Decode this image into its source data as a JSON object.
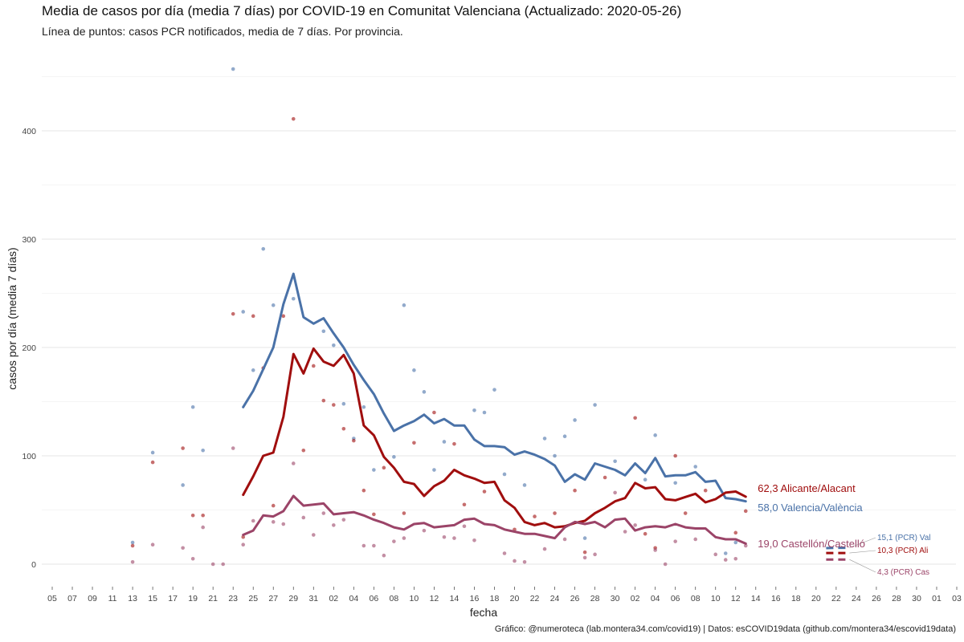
{
  "title": "Media de casos por día (media 7 días) por COVID-19 en Comunitat Valenciana (Actualizado: 2020-05-26)",
  "subtitle": "Línea de puntos: casos PCR notificados, media de 7 días. Por provincia.",
  "caption": "Gráfico: @numeroteca (lab.montera34.com/covid19) | Datos: esCOVID19data (github.com/montera34/escovid19data)",
  "colors": {
    "Valencia": "#4a72a8",
    "Alicante": "#a00e0e",
    "Castellon": "#9b4468",
    "grid": "#ebebeb"
  },
  "chart_data": {
    "type": "line",
    "xlabel": "fecha",
    "ylabel": "casos por día (media 7 días)",
    "x_start": "2020-03-05",
    "x_end": "2020-06-03",
    "xlim_days": [
      0,
      90
    ],
    "ylim": [
      -25,
      460
    ],
    "yticks": [
      0,
      100,
      200,
      300,
      400
    ],
    "xticks": [
      {
        "d": 0,
        "label": "05"
      },
      {
        "d": 2,
        "label": "07"
      },
      {
        "d": 4,
        "label": "09"
      },
      {
        "d": 6,
        "label": "11"
      },
      {
        "d": 8,
        "label": "13"
      },
      {
        "d": 10,
        "label": "15"
      },
      {
        "d": 12,
        "label": "17"
      },
      {
        "d": 14,
        "label": "19"
      },
      {
        "d": 16,
        "label": "21"
      },
      {
        "d": 18,
        "label": "23"
      },
      {
        "d": 20,
        "label": "25"
      },
      {
        "d": 22,
        "label": "27"
      },
      {
        "d": 24,
        "label": "29"
      },
      {
        "d": 26,
        "label": "31"
      },
      {
        "d": 28,
        "label": "02"
      },
      {
        "d": 30,
        "label": "04"
      },
      {
        "d": 32,
        "label": "06"
      },
      {
        "d": 34,
        "label": "08"
      },
      {
        "d": 36,
        "label": "10"
      },
      {
        "d": 38,
        "label": "12"
      },
      {
        "d": 40,
        "label": "14"
      },
      {
        "d": 42,
        "label": "16"
      },
      {
        "d": 44,
        "label": "18"
      },
      {
        "d": 46,
        "label": "20"
      },
      {
        "d": 48,
        "label": "22"
      },
      {
        "d": 50,
        "label": "24"
      },
      {
        "d": 52,
        "label": "26"
      },
      {
        "d": 54,
        "label": "28"
      },
      {
        "d": 56,
        "label": "30"
      },
      {
        "d": 58,
        "label": "02"
      },
      {
        "d": 60,
        "label": "04"
      },
      {
        "d": 62,
        "label": "06"
      },
      {
        "d": 64,
        "label": "08"
      },
      {
        "d": 66,
        "label": "10"
      },
      {
        "d": 68,
        "label": "12"
      },
      {
        "d": 70,
        "label": "14"
      },
      {
        "d": 72,
        "label": "16"
      },
      {
        "d": 74,
        "label": "18"
      },
      {
        "d": 76,
        "label": "20"
      },
      {
        "d": 78,
        "label": "22"
      },
      {
        "d": 80,
        "label": "24"
      },
      {
        "d": 82,
        "label": "26"
      },
      {
        "d": 84,
        "label": "28"
      },
      {
        "d": 86,
        "label": "30"
      },
      {
        "d": 88,
        "label": "01"
      },
      {
        "d": 90,
        "label": "03"
      }
    ],
    "series": [
      {
        "name": "Valencia/València",
        "colorKey": "Valencia",
        "start_day": 19,
        "values": [
          145,
          160,
          180,
          200,
          240,
          268,
          228,
          222,
          227,
          213,
          200,
          184,
          170,
          157,
          139,
          123,
          128,
          132,
          138,
          130,
          134,
          128,
          128,
          115,
          109,
          109,
          108,
          101,
          104,
          101,
          97,
          91,
          76,
          83,
          78,
          93,
          90,
          87,
          82,
          93,
          84,
          98,
          81,
          82,
          82,
          85,
          76,
          77,
          61,
          60,
          58
        ],
        "end_label": "58,0 Valencia/València",
        "pcr": {
          "start_day": 77,
          "values": [
            14.8,
            15.1,
            15.1
          ],
          "label": "15,1 (PCR) Val"
        }
      },
      {
        "name": "Alicante/Alacant",
        "colorKey": "Alicante",
        "start_day": 19,
        "values": [
          64,
          81,
          100,
          103,
          136,
          194,
          176,
          199,
          187,
          183,
          193,
          176,
          128,
          119,
          99,
          89,
          76,
          74,
          63,
          72,
          77,
          87,
          82,
          79,
          75,
          76,
          59,
          52,
          39,
          36,
          38,
          34,
          35,
          38,
          40,
          47,
          52,
          58,
          61,
          75,
          70,
          71,
          60,
          59,
          62,
          65,
          57,
          60,
          66,
          67,
          62.3
        ],
        "end_label": "62,3 Alicante/Alacant",
        "pcr": {
          "start_day": 77,
          "values": [
            10.3,
            10.3,
            10.3
          ],
          "label": "10,3 (PCR) Ali"
        }
      },
      {
        "name": "Castellón/Castelló",
        "colorKey": "Castellon",
        "start_day": 19,
        "values": [
          27,
          31,
          45,
          44,
          49,
          63,
          54,
          55,
          56,
          46,
          47,
          48,
          45,
          41,
          38,
          34,
          32,
          37,
          38,
          34,
          35,
          36,
          41,
          42,
          37,
          36,
          32,
          30,
          28,
          28,
          26,
          24,
          34,
          39,
          37,
          39,
          34,
          41,
          42,
          31,
          34,
          35,
          34,
          37,
          34,
          33,
          33,
          25,
          23,
          23,
          19
        ],
        "end_label": "19,0 Castellón/Castelló",
        "pcr": {
          "start_day": 77,
          "values": [
            4.3,
            4.3,
            4.3
          ],
          "label": "4,3 (PCR) Cas"
        }
      }
    ],
    "daily_points": [
      {
        "colorKey": "Valencia",
        "day": 10,
        "v": 103
      },
      {
        "colorKey": "Valencia",
        "day": 13,
        "v": 73
      },
      {
        "colorKey": "Valencia",
        "day": 14,
        "v": 145
      },
      {
        "colorKey": "Valencia",
        "day": 15,
        "v": 105
      },
      {
        "colorKey": "Valencia",
        "day": 18,
        "v": 457
      },
      {
        "colorKey": "Valencia",
        "day": 19,
        "v": 233
      },
      {
        "colorKey": "Valencia",
        "day": 20,
        "v": 179
      },
      {
        "colorKey": "Valencia",
        "day": 21,
        "v": 291
      },
      {
        "colorKey": "Valencia",
        "day": 22,
        "v": 239
      },
      {
        "colorKey": "Valencia",
        "day": 24,
        "v": 245
      },
      {
        "colorKey": "Valencia",
        "day": 27,
        "v": 215
      },
      {
        "colorKey": "Valencia",
        "day": 28,
        "v": 202
      },
      {
        "colorKey": "Valencia",
        "day": 29,
        "v": 148
      },
      {
        "colorKey": "Valencia",
        "day": 30,
        "v": 116
      },
      {
        "colorKey": "Valencia",
        "day": 31,
        "v": 145
      },
      {
        "colorKey": "Valencia",
        "day": 32,
        "v": 87
      },
      {
        "colorKey": "Valencia",
        "day": 34,
        "v": 99
      },
      {
        "colorKey": "Valencia",
        "day": 35,
        "v": 239
      },
      {
        "colorKey": "Valencia",
        "day": 36,
        "v": 179
      },
      {
        "colorKey": "Valencia",
        "day": 37,
        "v": 159
      },
      {
        "colorKey": "Valencia",
        "day": 38,
        "v": 87
      },
      {
        "colorKey": "Valencia",
        "day": 39,
        "v": 113
      },
      {
        "colorKey": "Valencia",
        "day": 42,
        "v": 142
      },
      {
        "colorKey": "Valencia",
        "day": 43,
        "v": 140
      },
      {
        "colorKey": "Valencia",
        "day": 44,
        "v": 161
      },
      {
        "colorKey": "Valencia",
        "day": 45,
        "v": 83
      },
      {
        "colorKey": "Valencia",
        "day": 47,
        "v": 73
      },
      {
        "colorKey": "Valencia",
        "day": 49,
        "v": 116
      },
      {
        "colorKey": "Valencia",
        "day": 50,
        "v": 100
      },
      {
        "colorKey": "Valencia",
        "day": 51,
        "v": 118
      },
      {
        "colorKey": "Valencia",
        "day": 52,
        "v": 133
      },
      {
        "colorKey": "Valencia",
        "day": 54,
        "v": 147
      },
      {
        "colorKey": "Valencia",
        "day": 56,
        "v": 95
      },
      {
        "colorKey": "Valencia",
        "day": 59,
        "v": 78
      },
      {
        "colorKey": "Valencia",
        "day": 60,
        "v": 119
      },
      {
        "colorKey": "Valencia",
        "day": 62,
        "v": 75
      },
      {
        "colorKey": "Valencia",
        "day": 64,
        "v": 90
      },
      {
        "colorKey": "Valencia",
        "day": 67,
        "v": 10
      },
      {
        "colorKey": "Valencia",
        "day": 68,
        "v": 20
      },
      {
        "colorKey": "Valencia",
        "day": 8,
        "v": 20
      },
      {
        "colorKey": "Valencia",
        "day": 53,
        "v": 24
      },
      {
        "colorKey": "Alicante",
        "day": 8,
        "v": 17
      },
      {
        "colorKey": "Alicante",
        "day": 10,
        "v": 94
      },
      {
        "colorKey": "Alicante",
        "day": 13,
        "v": 107
      },
      {
        "colorKey": "Alicante",
        "day": 14,
        "v": 45
      },
      {
        "colorKey": "Alicante",
        "day": 15,
        "v": 45
      },
      {
        "colorKey": "Alicante",
        "day": 18,
        "v": 231
      },
      {
        "colorKey": "Alicante",
        "day": 19,
        "v": 25
      },
      {
        "colorKey": "Alicante",
        "day": 20,
        "v": 229
      },
      {
        "colorKey": "Alicante",
        "day": 21,
        "v": 181
      },
      {
        "colorKey": "Alicante",
        "day": 22,
        "v": 54
      },
      {
        "colorKey": "Alicante",
        "day": 23,
        "v": 229
      },
      {
        "colorKey": "Alicante",
        "day": 24,
        "v": 411
      },
      {
        "colorKey": "Alicante",
        "day": 25,
        "v": 105
      },
      {
        "colorKey": "Alicante",
        "day": 26,
        "v": 183
      },
      {
        "colorKey": "Alicante",
        "day": 27,
        "v": 151
      },
      {
        "colorKey": "Alicante",
        "day": 28,
        "v": 147
      },
      {
        "colorKey": "Alicante",
        "day": 29,
        "v": 125
      },
      {
        "colorKey": "Alicante",
        "day": 30,
        "v": 114
      },
      {
        "colorKey": "Alicante",
        "day": 31,
        "v": 68
      },
      {
        "colorKey": "Alicante",
        "day": 32,
        "v": 46
      },
      {
        "colorKey": "Alicante",
        "day": 33,
        "v": 89
      },
      {
        "colorKey": "Alicante",
        "day": 35,
        "v": 47
      },
      {
        "colorKey": "Alicante",
        "day": 36,
        "v": 112
      },
      {
        "colorKey": "Alicante",
        "day": 38,
        "v": 140
      },
      {
        "colorKey": "Alicante",
        "day": 40,
        "v": 111
      },
      {
        "colorKey": "Alicante",
        "day": 41,
        "v": 55
      },
      {
        "colorKey": "Alicante",
        "day": 43,
        "v": 67
      },
      {
        "colorKey": "Alicante",
        "day": 46,
        "v": 32
      },
      {
        "colorKey": "Alicante",
        "day": 48,
        "v": 44
      },
      {
        "colorKey": "Alicante",
        "day": 50,
        "v": 47
      },
      {
        "colorKey": "Alicante",
        "day": 52,
        "v": 68
      },
      {
        "colorKey": "Alicante",
        "day": 53,
        "v": 11
      },
      {
        "colorKey": "Alicante",
        "day": 55,
        "v": 80
      },
      {
        "colorKey": "Alicante",
        "day": 58,
        "v": 135
      },
      {
        "colorKey": "Alicante",
        "day": 59,
        "v": 28
      },
      {
        "colorKey": "Alicante",
        "day": 60,
        "v": 15
      },
      {
        "colorKey": "Alicante",
        "day": 62,
        "v": 100
      },
      {
        "colorKey": "Alicante",
        "day": 63,
        "v": 47
      },
      {
        "colorKey": "Alicante",
        "day": 65,
        "v": 68
      },
      {
        "colorKey": "Alicante",
        "day": 68,
        "v": 29
      },
      {
        "colorKey": "Alicante",
        "day": 69,
        "v": 49
      },
      {
        "colorKey": "Castellon",
        "day": 8,
        "v": 2
      },
      {
        "colorKey": "Castellon",
        "day": 10,
        "v": 18
      },
      {
        "colorKey": "Castellon",
        "day": 13,
        "v": 15
      },
      {
        "colorKey": "Castellon",
        "day": 14,
        "v": 5
      },
      {
        "colorKey": "Castellon",
        "day": 15,
        "v": 34
      },
      {
        "colorKey": "Castellon",
        "day": 16,
        "v": 0
      },
      {
        "colorKey": "Castellon",
        "day": 17,
        "v": 0
      },
      {
        "colorKey": "Castellon",
        "day": 18,
        "v": 107
      },
      {
        "colorKey": "Castellon",
        "day": 19,
        "v": 18
      },
      {
        "colorKey": "Castellon",
        "day": 20,
        "v": 40
      },
      {
        "colorKey": "Castellon",
        "day": 22,
        "v": 39
      },
      {
        "colorKey": "Castellon",
        "day": 23,
        "v": 37
      },
      {
        "colorKey": "Castellon",
        "day": 24,
        "v": 93
      },
      {
        "colorKey": "Castellon",
        "day": 25,
        "v": 43
      },
      {
        "colorKey": "Castellon",
        "day": 26,
        "v": 27
      },
      {
        "colorKey": "Castellon",
        "day": 27,
        "v": 47
      },
      {
        "colorKey": "Castellon",
        "day": 28,
        "v": 36
      },
      {
        "colorKey": "Castellon",
        "day": 29,
        "v": 41
      },
      {
        "colorKey": "Castellon",
        "day": 31,
        "v": 17
      },
      {
        "colorKey": "Castellon",
        "day": 32,
        "v": 17
      },
      {
        "colorKey": "Castellon",
        "day": 33,
        "v": 8
      },
      {
        "colorKey": "Castellon",
        "day": 34,
        "v": 21
      },
      {
        "colorKey": "Castellon",
        "day": 35,
        "v": 24
      },
      {
        "colorKey": "Castellon",
        "day": 37,
        "v": 31
      },
      {
        "colorKey": "Castellon",
        "day": 39,
        "v": 25
      },
      {
        "colorKey": "Castellon",
        "day": 40,
        "v": 24
      },
      {
        "colorKey": "Castellon",
        "day": 41,
        "v": 35
      },
      {
        "colorKey": "Castellon",
        "day": 42,
        "v": 22
      },
      {
        "colorKey": "Castellon",
        "day": 45,
        "v": 10
      },
      {
        "colorKey": "Castellon",
        "day": 46,
        "v": 3
      },
      {
        "colorKey": "Castellon",
        "day": 47,
        "v": 2
      },
      {
        "colorKey": "Castellon",
        "day": 49,
        "v": 14
      },
      {
        "colorKey": "Castellon",
        "day": 51,
        "v": 23
      },
      {
        "colorKey": "Castellon",
        "day": 53,
        "v": 6
      },
      {
        "colorKey": "Castellon",
        "day": 54,
        "v": 9
      },
      {
        "colorKey": "Castellon",
        "day": 56,
        "v": 66
      },
      {
        "colorKey": "Castellon",
        "day": 57,
        "v": 30
      },
      {
        "colorKey": "Castellon",
        "day": 58,
        "v": 36
      },
      {
        "colorKey": "Castellon",
        "day": 60,
        "v": 13
      },
      {
        "colorKey": "Castellon",
        "day": 61,
        "v": 0
      },
      {
        "colorKey": "Castellon",
        "day": 62,
        "v": 21
      },
      {
        "colorKey": "Castellon",
        "day": 64,
        "v": 23
      },
      {
        "colorKey": "Castellon",
        "day": 66,
        "v": 9
      },
      {
        "colorKey": "Castellon",
        "day": 67,
        "v": 4
      },
      {
        "colorKey": "Castellon",
        "day": 68,
        "v": 5
      },
      {
        "colorKey": "Castellon",
        "day": 69,
        "v": 17
      }
    ]
  }
}
